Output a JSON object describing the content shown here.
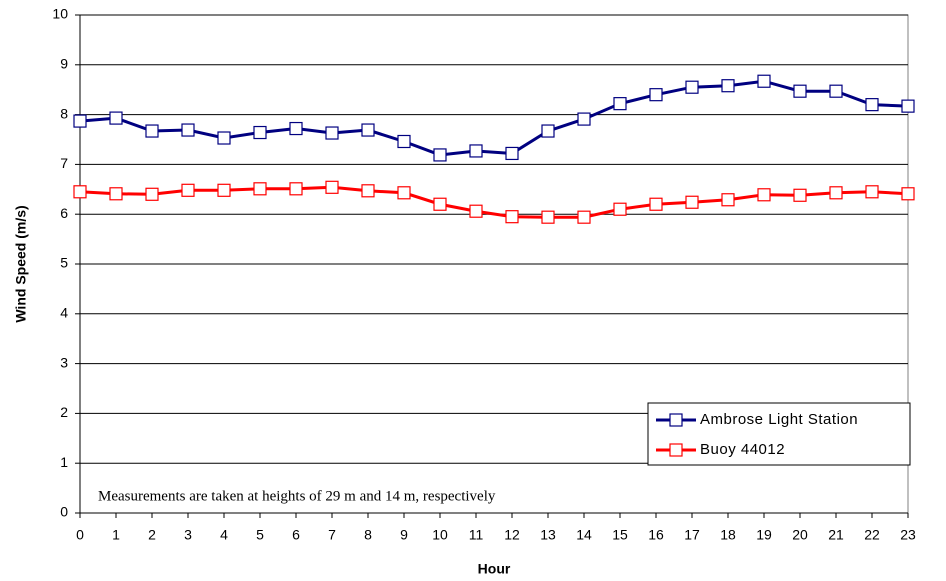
{
  "chart_data": {
    "type": "line",
    "xlabel": "Hour",
    "ylabel": "Wind Speed (m/s)",
    "annotation": "Measurements are taken at heights of 29 m and 14 m, respectively",
    "x": [
      0,
      1,
      2,
      3,
      4,
      5,
      6,
      7,
      8,
      9,
      10,
      11,
      12,
      13,
      14,
      15,
      16,
      17,
      18,
      19,
      20,
      21,
      22,
      23
    ],
    "xlim": [
      0,
      23
    ],
    "xticks": [
      0,
      1,
      2,
      3,
      4,
      5,
      6,
      7,
      8,
      9,
      10,
      11,
      12,
      13,
      14,
      15,
      16,
      17,
      18,
      19,
      20,
      21,
      22,
      23
    ],
    "ylim": [
      0,
      10
    ],
    "yticks": [
      0,
      1,
      2,
      3,
      4,
      5,
      6,
      7,
      8,
      9,
      10
    ],
    "grid": true,
    "legend": "lower right",
    "series": [
      {
        "name": "Ambrose Light Station",
        "color": "#000080",
        "values": [
          7.87,
          7.93,
          7.67,
          7.69,
          7.53,
          7.64,
          7.72,
          7.63,
          7.69,
          7.46,
          7.19,
          7.27,
          7.22,
          7.67,
          7.91,
          8.22,
          8.4,
          8.55,
          8.58,
          8.67,
          8.47,
          8.47,
          8.2,
          8.17
        ]
      },
      {
        "name": "Buoy 44012",
        "color": "#ff0000",
        "values": [
          6.45,
          6.41,
          6.4,
          6.48,
          6.48,
          6.51,
          6.51,
          6.54,
          6.47,
          6.43,
          6.2,
          6.06,
          5.95,
          5.94,
          5.94,
          6.1,
          6.2,
          6.24,
          6.29,
          6.39,
          6.38,
          6.43,
          6.45,
          6.41
        ]
      }
    ]
  }
}
